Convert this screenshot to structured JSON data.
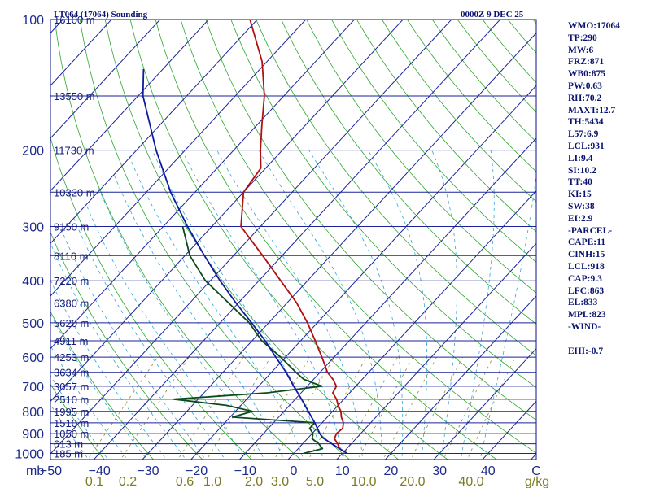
{
  "header": {
    "station": "LT064 (17064) Sounding",
    "time": "0000Z  9 DEC 25"
  },
  "indices": [
    "WMO:17064",
    "TP:290",
    "MW:6",
    "FRZ:871",
    "WB0:875",
    "PW:0.63",
    "RH:70.2",
    "MAXT:12.7",
    "TH:5434",
    "L57:6.9",
    "LCL:931",
    "LI:9.4",
    "SI:10.2",
    "TT:40",
    "KI:15",
    "SW:38",
    "EI:2.9",
    "-PARCEL-",
    "CAPE:11",
    "CINH:15",
    "LCL:918",
    "CAP:9.3",
    "LFC:863",
    "EL:833",
    "MPL:823",
    "-WIND-",
    "",
    "EHI:-0.7"
  ],
  "chart_data": {
    "type": "line",
    "title": "LT064 (17064) Sounding",
    "subtitle": "0000Z  9 DEC 25",
    "xlabel": "°C",
    "ylabel": "mb",
    "p_range": [
      1000,
      100
    ],
    "t_range": [
      -50,
      50
    ],
    "pressure_ticks": [
      {
        "p": 100,
        "label": "100"
      },
      {
        "p": 200,
        "label": "200"
      },
      {
        "p": 300,
        "label": "300"
      },
      {
        "p": 400,
        "label": "400"
      },
      {
        "p": 500,
        "label": "500"
      },
      {
        "p": 600,
        "label": "600"
      },
      {
        "p": 700,
        "label": "700"
      },
      {
        "p": 800,
        "label": "800"
      },
      {
        "p": 900,
        "label": "900"
      },
      {
        "p": 1000,
        "label": "1000"
      }
    ],
    "bottom_unit_label": "mb",
    "temp_ticks": [
      {
        "t": -50,
        "label": "−50"
      },
      {
        "t": -40,
        "label": "−40"
      },
      {
        "t": -30,
        "label": "−30"
      },
      {
        "t": -20,
        "label": "−20"
      },
      {
        "t": -10,
        "label": "−10"
      },
      {
        "t": 0,
        "label": "0"
      },
      {
        "t": 10,
        "label": "10"
      },
      {
        "t": 20,
        "label": "20"
      },
      {
        "t": 30,
        "label": "30"
      },
      {
        "t": 40,
        "label": "40"
      }
    ],
    "temp_unit_label": "C",
    "mixing_ratio_labels": [
      "0.1",
      "0.2",
      "0.6",
      "1.0",
      "2.0",
      "3.0",
      "5.0",
      "10.0",
      "20.0",
      "40.0"
    ],
    "mixing_unit_label": "g/kg",
    "height_levels": [
      {
        "p": 100,
        "label": "16100 m"
      },
      {
        "p": 150,
        "label": "13550 m"
      },
      {
        "p": 200,
        "label": "11730 m"
      },
      {
        "p": 250,
        "label": "10320 m"
      },
      {
        "p": 300,
        "label": "9150 m"
      },
      {
        "p": 350,
        "label": "8116 m"
      },
      {
        "p": 400,
        "label": "7220 m"
      },
      {
        "p": 450,
        "label": "6380 m"
      },
      {
        "p": 500,
        "label": "5620 m"
      },
      {
        "p": 550,
        "label": "4911 m"
      },
      {
        "p": 600,
        "label": "4253 m"
      },
      {
        "p": 650,
        "label": "3634 m"
      },
      {
        "p": 700,
        "label": "3057 m"
      },
      {
        "p": 750,
        "label": "2510 m"
      },
      {
        "p": 800,
        "label": "1995 m"
      },
      {
        "p": 850,
        "label": "1510 m"
      },
      {
        "p": 900,
        "label": "1050 m"
      },
      {
        "p": 950,
        "label": "613 m"
      },
      {
        "p": 1000,
        "label": "185 m"
      }
    ],
    "series": [
      {
        "name": "temperature",
        "color": "#b01010",
        "points": [
          {
            "p": 1000,
            "t": 11.0
          },
          {
            "p": 975,
            "t": 8.5
          },
          {
            "p": 950,
            "t": 7.2
          },
          {
            "p": 925,
            "t": 5.6
          },
          {
            "p": 900,
            "t": 5.0
          },
          {
            "p": 875,
            "t": 5.3
          },
          {
            "p": 850,
            "t": 4.4
          },
          {
            "p": 825,
            "t": 2.9
          },
          {
            "p": 800,
            "t": 1.7
          },
          {
            "p": 775,
            "t": 0.0
          },
          {
            "p": 750,
            "t": -1.5
          },
          {
            "p": 725,
            "t": -3.5
          },
          {
            "p": 700,
            "t": -4.0
          },
          {
            "p": 675,
            "t": -6.0
          },
          {
            "p": 650,
            "t": -8.5
          },
          {
            "p": 600,
            "t": -12.5
          },
          {
            "p": 550,
            "t": -17.0
          },
          {
            "p": 500,
            "t": -22.0
          },
          {
            "p": 450,
            "t": -28.0
          },
          {
            "p": 400,
            "t": -35.5
          },
          {
            "p": 350,
            "t": -44.0
          },
          {
            "p": 300,
            "t": -54.0
          },
          {
            "p": 250,
            "t": -60.0
          },
          {
            "p": 220,
            "t": -61.0
          },
          {
            "p": 200,
            "t": -64.5
          },
          {
            "p": 175,
            "t": -69.0
          },
          {
            "p": 150,
            "t": -74.0
          },
          {
            "p": 125,
            "t": -81.0
          },
          {
            "p": 100,
            "t": -91.5
          }
        ]
      },
      {
        "name": "dewpoint",
        "color": "#0a4a1c",
        "points": [
          {
            "p": 1000,
            "t": 2.0
          },
          {
            "p": 975,
            "t": 5.0
          },
          {
            "p": 950,
            "t": 3.3
          },
          {
            "p": 925,
            "t": 1.0
          },
          {
            "p": 900,
            "t": 0.2
          },
          {
            "p": 875,
            "t": -1.5
          },
          {
            "p": 850,
            "t": -1.5
          },
          {
            "p": 825,
            "t": -19.5
          },
          {
            "p": 800,
            "t": -16.5
          },
          {
            "p": 775,
            "t": -23.0
          },
          {
            "p": 750,
            "t": -35.0
          },
          {
            "p": 725,
            "t": -17.0
          },
          {
            "p": 700,
            "t": -7.0
          },
          {
            "p": 675,
            "t": -12.0
          },
          {
            "p": 650,
            "t": -15.0
          },
          {
            "p": 600,
            "t": -21.0
          },
          {
            "p": 550,
            "t": -28.0
          },
          {
            "p": 500,
            "t": -34.0
          },
          {
            "p": 450,
            "t": -42.0
          },
          {
            "p": 400,
            "t": -51.0
          },
          {
            "p": 350,
            "t": -59.0
          },
          {
            "p": 300,
            "t": -66.0
          }
        ]
      },
      {
        "name": "parcel",
        "color": "#0f1aa0",
        "points": [
          {
            "p": 1000,
            "t": 11.0
          },
          {
            "p": 950,
            "t": 6.0
          },
          {
            "p": 918,
            "t": 2.8
          },
          {
            "p": 900,
            "t": 1.6
          },
          {
            "p": 850,
            "t": -1.5
          },
          {
            "p": 800,
            "t": -5.0
          },
          {
            "p": 750,
            "t": -8.7
          },
          {
            "p": 700,
            "t": -12.8
          },
          {
            "p": 650,
            "t": -17.0
          },
          {
            "p": 600,
            "t": -22.0
          },
          {
            "p": 550,
            "t": -27.3
          },
          {
            "p": 500,
            "t": -33.5
          },
          {
            "p": 450,
            "t": -40.5
          },
          {
            "p": 400,
            "t": -48.0
          },
          {
            "p": 350,
            "t": -56.0
          },
          {
            "p": 300,
            "t": -65.0
          },
          {
            "p": 250,
            "t": -75.0
          },
          {
            "p": 200,
            "t": -86.0
          },
          {
            "p": 150,
            "t": -99.0
          },
          {
            "p": 130,
            "t": -104.0
          }
        ]
      }
    ]
  }
}
